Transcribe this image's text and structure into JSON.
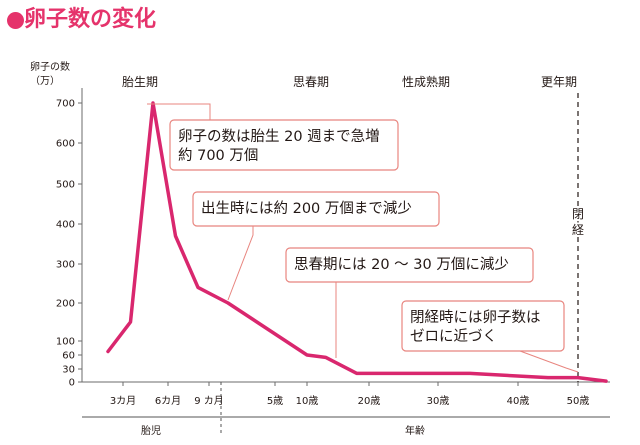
{
  "title": "卵子数の変化",
  "colors": {
    "accent": "#e5336b",
    "line": "#d9276e",
    "text": "#231815",
    "annotation_border": "#e8857f"
  },
  "chart_data": {
    "type": "line",
    "title": "卵子数の変化",
    "ylabel_lines": [
      "卵子の数",
      "（万）"
    ],
    "y_ticks": [
      0,
      30,
      60,
      100,
      200,
      300,
      400,
      500,
      600,
      700
    ],
    "ylim": [
      0,
      720
    ],
    "x_ticks": [
      "3カ月",
      "6カ月",
      "9 カ月",
      "5歳",
      "10歳",
      "20歳",
      "30歳",
      "40歳",
      "50歳"
    ],
    "x_segments": [
      "胎児",
      "年齢"
    ],
    "periods": [
      "胎生期",
      "思春期",
      "性成熟期",
      "更年期"
    ],
    "menopause_label": "閉経",
    "series": [
      {
        "points": [
          {
            "x": "2カ月",
            "y": 70
          },
          {
            "x": "3.5カ月",
            "y": 150
          },
          {
            "x": "5カ月",
            "y": 700
          },
          {
            "x": "6.5カ月",
            "y": 370
          },
          {
            "x": "8カ月",
            "y": 240
          },
          {
            "x": "出生",
            "y": 200
          },
          {
            "x": "10歳",
            "y": 60
          },
          {
            "x": "13歳",
            "y": 55
          },
          {
            "x": "18歳",
            "y": 20
          },
          {
            "x": "34歳",
            "y": 20
          },
          {
            "x": "45歳",
            "y": 10
          },
          {
            "x": "50歳",
            "y": 10
          },
          {
            "x": "54歳",
            "y": 2
          }
        ]
      }
    ],
    "annotations": [
      "卵子の数は胎生 20 週まで急増\n約 700 万個",
      "出生時には約 200 万個まで減少",
      "思春期には 20 ～ 30 万個に減少",
      "閉経時には卵子数は\nゼロに近づく"
    ]
  }
}
